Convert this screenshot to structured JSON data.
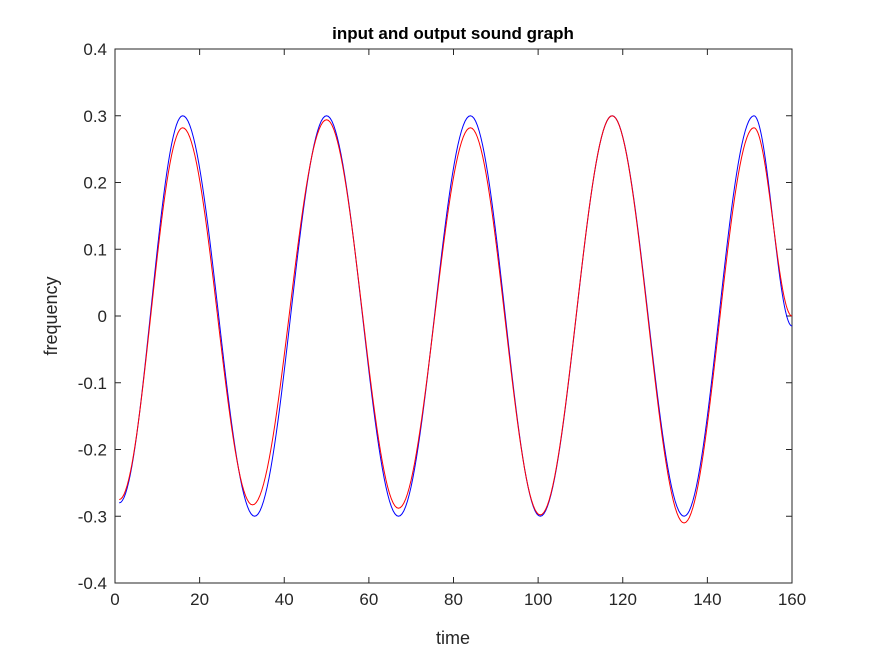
{
  "chart_data": {
    "type": "line",
    "title": "input and output sound graph",
    "xlabel": "time",
    "ylabel": "frequency",
    "xlim": [
      0,
      160
    ],
    "ylim": [
      -0.4,
      0.4
    ],
    "xticks": [
      "0",
      "20",
      "40",
      "60",
      "80",
      "100",
      "120",
      "140",
      "160"
    ],
    "yticks": [
      "-0.4",
      "-0.3",
      "-0.2",
      "-0.1",
      "0",
      "0.1",
      "0.2",
      "0.3",
      "0.4"
    ],
    "grid": false,
    "series": [
      {
        "color": "#0000ff",
        "x": [
          1,
          16,
          33,
          50,
          67,
          84,
          100.5,
          117.5,
          134.5,
          151,
          160
        ],
        "values": [
          -0.28,
          0.3,
          -0.3,
          0.3,
          -0.3,
          0.3,
          -0.3,
          0.3,
          -0.3,
          0.3,
          -0.015
        ]
      },
      {
        "color": "#ff0000",
        "x": [
          1,
          16,
          32.5,
          50,
          67,
          84,
          100.5,
          117.5,
          134.5,
          151,
          160
        ],
        "values": [
          -0.275,
          0.282,
          -0.283,
          0.294,
          -0.288,
          0.282,
          -0.298,
          0.3,
          -0.31,
          0.282,
          0.0
        ]
      }
    ]
  }
}
